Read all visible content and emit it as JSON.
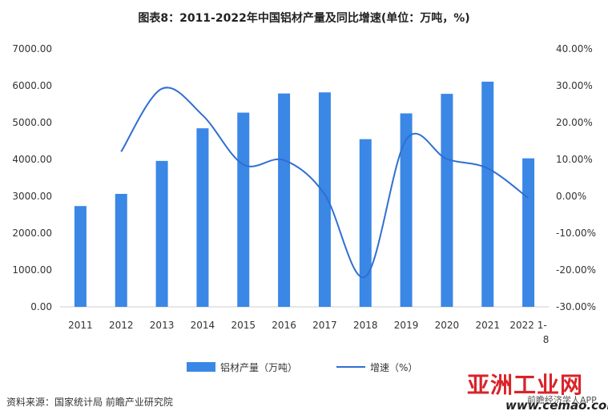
{
  "title": "图表8：2011-2022年中国铝材产量及同比增速(单位：万吨，%)",
  "source": "资料来源：国家统计局 前瞻产业研究院",
  "watermark": {
    "brand": "亚洲工业网",
    "site": "www.cemao.com",
    "app": "前瞻经济学人APP"
  },
  "chart_data": {
    "type": "bar",
    "categories": [
      "2011",
      "2012",
      "2013",
      "2014",
      "2015",
      "2016",
      "2017",
      "2018",
      "2019",
      "2020",
      "2021",
      "2022 1-8"
    ],
    "series": [
      {
        "name": "铝材产量（万吨）",
        "type": "bar",
        "axis": "left",
        "values": [
          2735,
          3065,
          3960,
          4845,
          5270,
          5790,
          5820,
          4550,
          5250,
          5780,
          6110,
          4030
        ]
      },
      {
        "name": "增速（%）",
        "type": "line",
        "axis": "right",
        "values": [
          null,
          12.1,
          29.2,
          22.0,
          8.6,
          9.8,
          0.5,
          -21.8,
          15.4,
          10.1,
          7.6,
          -0.5
        ]
      }
    ],
    "y_left": {
      "min": 0,
      "max": 7000,
      "step": 1000,
      "ticks": [
        "0.00",
        "1000.00",
        "2000.00",
        "3000.00",
        "4000.00",
        "5000.00",
        "6000.00",
        "7000.00"
      ]
    },
    "y_right": {
      "min": -30,
      "max": 40,
      "step": 10,
      "ticks": [
        "-30.00%",
        "-20.00%",
        "-10.00%",
        "0.00%",
        "10.00%",
        "20.00%",
        "30.00%",
        "40.00%"
      ]
    },
    "legend_position": "bottom",
    "grid": false,
    "colors": {
      "bar": "#3a87e6",
      "line": "#2f6fd1"
    }
  }
}
